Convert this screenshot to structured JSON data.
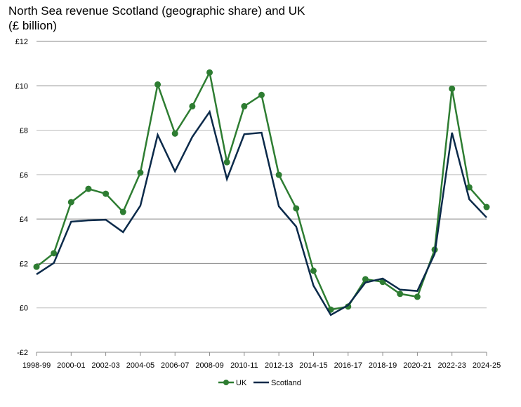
{
  "chart_data": {
    "type": "line",
    "title_lines": [
      "North Sea revenue Scotland (geographic share) and UK",
      "(£ billion)"
    ],
    "xlabel": "",
    "ylabel": "",
    "ylim": [
      -2,
      12
    ],
    "yticks": [
      -2,
      0,
      2,
      4,
      6,
      8,
      10,
      12
    ],
    "ytick_labels": [
      "-£2",
      "£0",
      "£2",
      "£4",
      "£6",
      "£8",
      "£10",
      "£12"
    ],
    "grid": true,
    "legend": "bottom",
    "categories": [
      "1998-99",
      "1999-00",
      "2000-01",
      "2001-02",
      "2002-03",
      "2003-04",
      "2004-05",
      "2005-06",
      "2006-07",
      "2007-08",
      "2008-09",
      "2009-10",
      "2010-11",
      "2011-12",
      "2012-13",
      "2013-14",
      "2014-15",
      "2015-16",
      "2016-17",
      "2017-18",
      "2018-19",
      "2019-20",
      "2020-21",
      "2021-22",
      "2022-23",
      "2023-24",
      "2024-25"
    ],
    "xtick_labels": [
      "1998-99",
      "2000-01",
      "2002-03",
      "2004-05",
      "2006-07",
      "2008-09",
      "2010-11",
      "2012-13",
      "2014-15",
      "2016-17",
      "2018-19",
      "2020-21",
      "2022-23",
      "2024-25"
    ],
    "series": [
      {
        "name": "UK",
        "color": "#2e7d32",
        "markers": true,
        "values": [
          1.85,
          2.46,
          4.76,
          5.36,
          5.14,
          4.32,
          6.09,
          10.06,
          7.85,
          9.08,
          10.6,
          6.56,
          9.08,
          9.59,
          5.99,
          4.48,
          1.67,
          -0.08,
          0.06,
          1.29,
          1.17,
          0.63,
          0.5,
          2.62,
          9.87,
          5.43,
          4.54
        ]
      },
      {
        "name": "Scotland",
        "color": "#0b2a4a",
        "markers": false,
        "values": [
          1.51,
          2.02,
          3.88,
          3.94,
          3.97,
          3.41,
          4.6,
          7.79,
          6.15,
          7.7,
          8.83,
          5.8,
          7.82,
          7.89,
          4.57,
          3.66,
          1.0,
          -0.32,
          0.12,
          1.14,
          1.32,
          0.82,
          0.76,
          2.43,
          7.89,
          4.89,
          4.07
        ]
      }
    ]
  }
}
